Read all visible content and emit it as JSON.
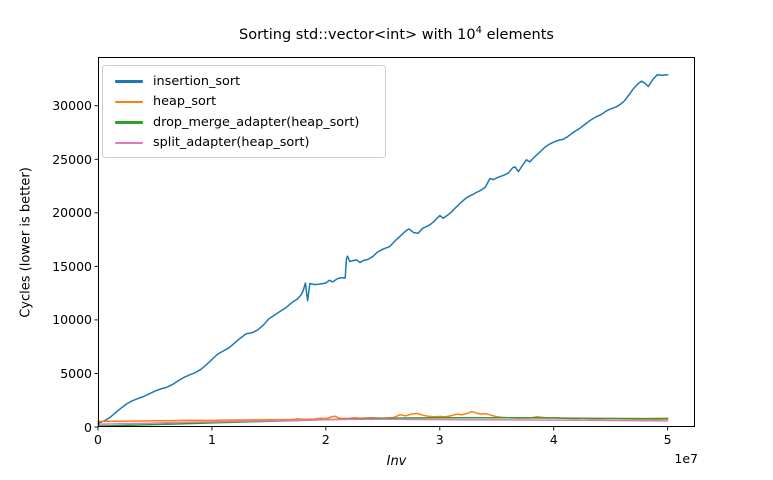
{
  "title": {
    "prefix": "Sorting std::vector<int> with 10",
    "exponent": "4",
    "suffix": " elements"
  },
  "axes": {
    "x": {
      "label": "Inv",
      "offset_label": "1e7",
      "ticks": [
        {
          "label": "0",
          "value": 0
        },
        {
          "label": "1",
          "value": 1
        },
        {
          "label": "2",
          "value": 2
        },
        {
          "label": "3",
          "value": 3
        },
        {
          "label": "4",
          "value": 4
        },
        {
          "label": "5",
          "value": 5
        }
      ]
    },
    "y": {
      "label": "Cycles (lower is better)",
      "ticks": [
        {
          "label": "0",
          "value": 0
        },
        {
          "label": "5000",
          "value": 5000
        },
        {
          "label": "10000",
          "value": 10000
        },
        {
          "label": "15000",
          "value": 15000
        },
        {
          "label": "20000",
          "value": 20000
        },
        {
          "label": "25000",
          "value": 25000
        },
        {
          "label": "30000",
          "value": 30000
        }
      ]
    }
  },
  "chart_data": {
    "type": "line",
    "title": "Sorting std::vector<int> with 10^4 elements",
    "xlabel": "Inv",
    "ylabel": "Cycles (lower is better)",
    "x_unit": "1e7",
    "xlim_1e7": [
      0,
      5.24
    ],
    "ylim": [
      0,
      34550
    ],
    "grid": false,
    "legend_position": "upper left",
    "series": [
      {
        "name": "insertion_sort",
        "color": "#1f77b4",
        "points": [
          [
            0.0,
            350
          ],
          [
            0.05,
            550
          ],
          [
            0.1,
            850
          ],
          [
            0.15,
            1300
          ],
          [
            0.2,
            1750
          ],
          [
            0.25,
            2150
          ],
          [
            0.3,
            2450
          ],
          [
            0.35,
            2650
          ],
          [
            0.4,
            2850
          ],
          [
            0.45,
            3100
          ],
          [
            0.5,
            3350
          ],
          [
            0.55,
            3550
          ],
          [
            0.6,
            3700
          ],
          [
            0.65,
            3950
          ],
          [
            0.7,
            4300
          ],
          [
            0.75,
            4600
          ],
          [
            0.8,
            4850
          ],
          [
            0.85,
            5050
          ],
          [
            0.9,
            5350
          ],
          [
            0.95,
            5800
          ],
          [
            1.0,
            6300
          ],
          [
            1.05,
            6800
          ],
          [
            1.1,
            7100
          ],
          [
            1.15,
            7400
          ],
          [
            1.2,
            7850
          ],
          [
            1.25,
            8300
          ],
          [
            1.3,
            8700
          ],
          [
            1.35,
            8800
          ],
          [
            1.4,
            9050
          ],
          [
            1.45,
            9500
          ],
          [
            1.5,
            10100
          ],
          [
            1.55,
            10450
          ],
          [
            1.6,
            10800
          ],
          [
            1.65,
            11150
          ],
          [
            1.7,
            11600
          ],
          [
            1.75,
            11950
          ],
          [
            1.78,
            12300
          ],
          [
            1.8,
            12700
          ],
          [
            1.82,
            13450
          ],
          [
            1.84,
            11800
          ],
          [
            1.86,
            13400
          ],
          [
            1.9,
            13300
          ],
          [
            1.95,
            13350
          ],
          [
            2.0,
            13450
          ],
          [
            2.03,
            13700
          ],
          [
            2.06,
            13550
          ],
          [
            2.1,
            13850
          ],
          [
            2.14,
            13950
          ],
          [
            2.17,
            13900
          ],
          [
            2.18,
            15700
          ],
          [
            2.19,
            15950
          ],
          [
            2.21,
            15450
          ],
          [
            2.24,
            15550
          ],
          [
            2.27,
            15600
          ],
          [
            2.3,
            15350
          ],
          [
            2.33,
            15550
          ],
          [
            2.37,
            15650
          ],
          [
            2.41,
            15900
          ],
          [
            2.45,
            16300
          ],
          [
            2.5,
            16600
          ],
          [
            2.56,
            16850
          ],
          [
            2.6,
            17300
          ],
          [
            2.65,
            17800
          ],
          [
            2.7,
            18300
          ],
          [
            2.73,
            18500
          ],
          [
            2.77,
            18150
          ],
          [
            2.81,
            18100
          ],
          [
            2.85,
            18550
          ],
          [
            2.88,
            18700
          ],
          [
            2.91,
            18850
          ],
          [
            2.95,
            19200
          ],
          [
            3.0,
            19750
          ],
          [
            3.03,
            19500
          ],
          [
            3.07,
            19800
          ],
          [
            3.1,
            20050
          ],
          [
            3.15,
            20600
          ],
          [
            3.2,
            21100
          ],
          [
            3.24,
            21450
          ],
          [
            3.28,
            21650
          ],
          [
            3.32,
            21900
          ],
          [
            3.36,
            22100
          ],
          [
            3.4,
            22400
          ],
          [
            3.44,
            23200
          ],
          [
            3.47,
            23100
          ],
          [
            3.52,
            23350
          ],
          [
            3.56,
            23500
          ],
          [
            3.6,
            23700
          ],
          [
            3.64,
            24200
          ],
          [
            3.66,
            24300
          ],
          [
            3.69,
            23850
          ],
          [
            3.73,
            24500
          ],
          [
            3.76,
            24950
          ],
          [
            3.79,
            24750
          ],
          [
            3.83,
            25200
          ],
          [
            3.88,
            25700
          ],
          [
            3.92,
            26100
          ],
          [
            3.96,
            26400
          ],
          [
            4.0,
            26600
          ],
          [
            4.05,
            26800
          ],
          [
            4.08,
            26850
          ],
          [
            4.12,
            27100
          ],
          [
            4.17,
            27500
          ],
          [
            4.23,
            27900
          ],
          [
            4.28,
            28300
          ],
          [
            4.33,
            28700
          ],
          [
            4.38,
            29000
          ],
          [
            4.42,
            29200
          ],
          [
            4.46,
            29500
          ],
          [
            4.5,
            29700
          ],
          [
            4.55,
            29900
          ],
          [
            4.58,
            30100
          ],
          [
            4.62,
            30450
          ],
          [
            4.66,
            31000
          ],
          [
            4.7,
            31600
          ],
          [
            4.74,
            32050
          ],
          [
            4.77,
            32300
          ],
          [
            4.8,
            32100
          ],
          [
            4.83,
            31800
          ],
          [
            4.87,
            32450
          ],
          [
            4.91,
            32900
          ],
          [
            4.95,
            32850
          ],
          [
            5.0,
            32900
          ]
        ]
      },
      {
        "name": "heap_sort",
        "color": "#ff7f0e",
        "points": [
          [
            0.0,
            520
          ],
          [
            0.1,
            540
          ],
          [
            0.2,
            545
          ],
          [
            0.3,
            555
          ],
          [
            0.4,
            560
          ],
          [
            0.5,
            575
          ],
          [
            0.6,
            590
          ],
          [
            0.7,
            610
          ],
          [
            0.8,
            625
          ],
          [
            0.9,
            615
          ],
          [
            1.0,
            620
          ],
          [
            1.1,
            640
          ],
          [
            1.2,
            655
          ],
          [
            1.3,
            650
          ],
          [
            1.4,
            660
          ],
          [
            1.5,
            680
          ],
          [
            1.6,
            690
          ],
          [
            1.7,
            700
          ],
          [
            1.75,
            760
          ],
          [
            1.8,
            730
          ],
          [
            1.9,
            750
          ],
          [
            1.95,
            820
          ],
          [
            2.0,
            780
          ],
          [
            2.05,
            950
          ],
          [
            2.08,
            1000
          ],
          [
            2.12,
            820
          ],
          [
            2.2,
            800
          ],
          [
            2.25,
            860
          ],
          [
            2.3,
            820
          ],
          [
            2.4,
            870
          ],
          [
            2.5,
            820
          ],
          [
            2.6,
            900
          ],
          [
            2.65,
            1150
          ],
          [
            2.7,
            1050
          ],
          [
            2.75,
            1200
          ],
          [
            2.8,
            1270
          ],
          [
            2.85,
            1100
          ],
          [
            2.9,
            1000
          ],
          [
            2.95,
            950
          ],
          [
            3.0,
            980
          ],
          [
            3.05,
            950
          ],
          [
            3.1,
            1050
          ],
          [
            3.15,
            1200
          ],
          [
            3.2,
            1150
          ],
          [
            3.25,
            1300
          ],
          [
            3.28,
            1460
          ],
          [
            3.32,
            1300
          ],
          [
            3.36,
            1200
          ],
          [
            3.4,
            1250
          ],
          [
            3.45,
            1100
          ],
          [
            3.5,
            950
          ],
          [
            3.55,
            900
          ],
          [
            3.6,
            870
          ],
          [
            3.7,
            830
          ],
          [
            3.8,
            850
          ],
          [
            3.85,
            950
          ],
          [
            3.9,
            900
          ],
          [
            3.95,
            850
          ],
          [
            4.0,
            880
          ],
          [
            4.05,
            830
          ],
          [
            4.1,
            800
          ],
          [
            4.2,
            780
          ],
          [
            4.25,
            820
          ],
          [
            4.3,
            780
          ],
          [
            4.4,
            760
          ],
          [
            4.5,
            790
          ],
          [
            4.6,
            760
          ],
          [
            4.7,
            740
          ],
          [
            4.8,
            750
          ],
          [
            4.9,
            730
          ],
          [
            5.0,
            740
          ]
        ]
      },
      {
        "name": "drop_merge_adapter(heap_sort)",
        "color": "#2ca02c",
        "points": [
          [
            0.0,
            80
          ],
          [
            0.2,
            140
          ],
          [
            0.4,
            200
          ],
          [
            0.6,
            260
          ],
          [
            0.8,
            320
          ],
          [
            1.0,
            380
          ],
          [
            1.2,
            440
          ],
          [
            1.4,
            500
          ],
          [
            1.6,
            560
          ],
          [
            1.8,
            620
          ],
          [
            2.0,
            690
          ],
          [
            2.2,
            750
          ],
          [
            2.4,
            800
          ],
          [
            2.6,
            830
          ],
          [
            2.8,
            850
          ],
          [
            3.0,
            860
          ],
          [
            3.2,
            870
          ],
          [
            3.4,
            870
          ],
          [
            3.6,
            860
          ],
          [
            3.8,
            850
          ],
          [
            4.0,
            840
          ],
          [
            4.2,
            820
          ],
          [
            4.4,
            800
          ],
          [
            4.6,
            790
          ],
          [
            4.8,
            780
          ],
          [
            5.0,
            800
          ]
        ]
      },
      {
        "name": "split_adapter(heap_sort)",
        "color": "#e377c2",
        "points": [
          [
            0.0,
            260
          ],
          [
            0.2,
            300
          ],
          [
            0.4,
            340
          ],
          [
            0.6,
            390
          ],
          [
            0.8,
            440
          ],
          [
            1.0,
            480
          ],
          [
            1.2,
            520
          ],
          [
            1.4,
            560
          ],
          [
            1.6,
            600
          ],
          [
            1.8,
            640
          ],
          [
            2.0,
            680
          ],
          [
            2.2,
            710
          ],
          [
            2.4,
            720
          ],
          [
            2.6,
            715
          ],
          [
            2.8,
            705
          ],
          [
            3.0,
            695
          ],
          [
            3.2,
            685
          ],
          [
            3.4,
            675
          ],
          [
            3.6,
            665
          ],
          [
            3.8,
            655
          ],
          [
            4.0,
            645
          ],
          [
            4.2,
            630
          ],
          [
            4.4,
            615
          ],
          [
            4.6,
            600
          ],
          [
            4.8,
            585
          ],
          [
            5.0,
            570
          ]
        ]
      }
    ]
  }
}
